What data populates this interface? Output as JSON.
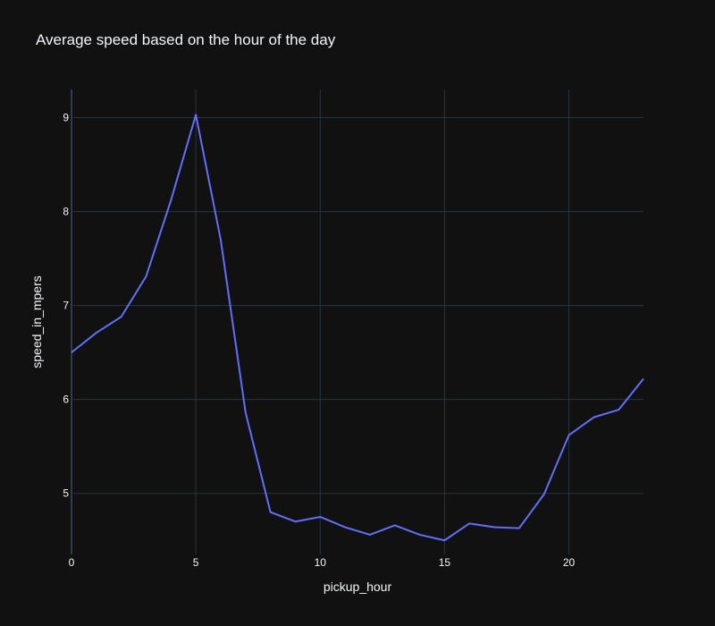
{
  "chart_data": {
    "type": "line",
    "title": "Average speed based on the hour of the day",
    "xlabel": "pickup_hour",
    "ylabel": "speed_in_mpers",
    "xlim": [
      0,
      23
    ],
    "ylim": [
      4.35,
      9.3
    ],
    "xticks": [
      "0",
      "5",
      "10",
      "15",
      "20"
    ],
    "yticks": [
      "5",
      "6",
      "7",
      "8",
      "9"
    ],
    "grid": true,
    "x": [
      0,
      1,
      2,
      3,
      4,
      5,
      6,
      7,
      8,
      9,
      10,
      11,
      12,
      13,
      14,
      15,
      16,
      17,
      18,
      19,
      20,
      21,
      22,
      23
    ],
    "series": [
      {
        "color": "#636efa",
        "values": [
          6.5,
          6.71,
          6.88,
          7.31,
          8.12,
          9.03,
          7.7,
          5.86,
          4.8,
          4.7,
          4.75,
          4.64,
          4.56,
          4.66,
          4.56,
          4.5,
          4.68,
          4.64,
          4.63,
          4.99,
          5.62,
          5.81,
          5.89,
          6.22
        ]
      }
    ]
  }
}
